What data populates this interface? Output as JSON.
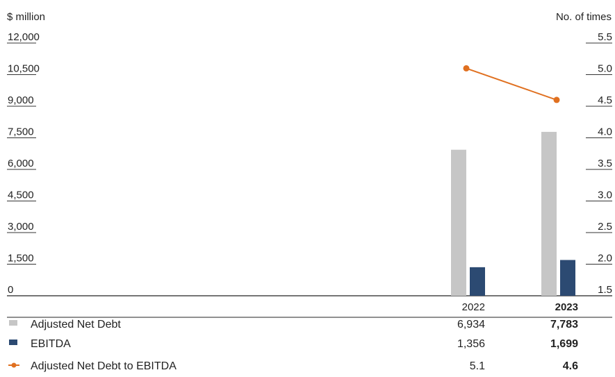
{
  "chart_data": {
    "type": "bar",
    "categories": [
      "2022",
      "2023"
    ],
    "highlight_category": "2023",
    "y_left": {
      "label": "$ million",
      "ticks": [
        "12,000",
        "10,500",
        "9,000",
        "7,500",
        "6,000",
        "4,500",
        "3,000",
        "1,500",
        "0"
      ],
      "range": [
        0,
        12000
      ]
    },
    "y_right": {
      "label": "No. of times",
      "ticks": [
        "5.5",
        "5.0",
        "4.5",
        "4.0",
        "3.5",
        "3.0",
        "2.5",
        "2.0",
        "1.5"
      ],
      "range": [
        1.5,
        5.5
      ]
    },
    "series": [
      {
        "name": "Adjusted Net Debt",
        "kind": "bar",
        "axis": "left",
        "color": "#c6c6c6",
        "values": [
          6934,
          7783
        ],
        "labels": [
          "6,934",
          "7,783"
        ]
      },
      {
        "name": "EBITDA",
        "kind": "bar",
        "axis": "left",
        "color": "#2c4a72",
        "values": [
          1356,
          1699
        ],
        "labels": [
          "1,356",
          "1,699"
        ]
      },
      {
        "name": "Adjusted Net Debt to EBITDA",
        "kind": "line",
        "axis": "right",
        "color": "#e07020",
        "values": [
          5.1,
          4.6
        ],
        "labels": [
          "5.1",
          "4.6"
        ]
      }
    ],
    "legend": "table-bottom",
    "grid": false
  }
}
